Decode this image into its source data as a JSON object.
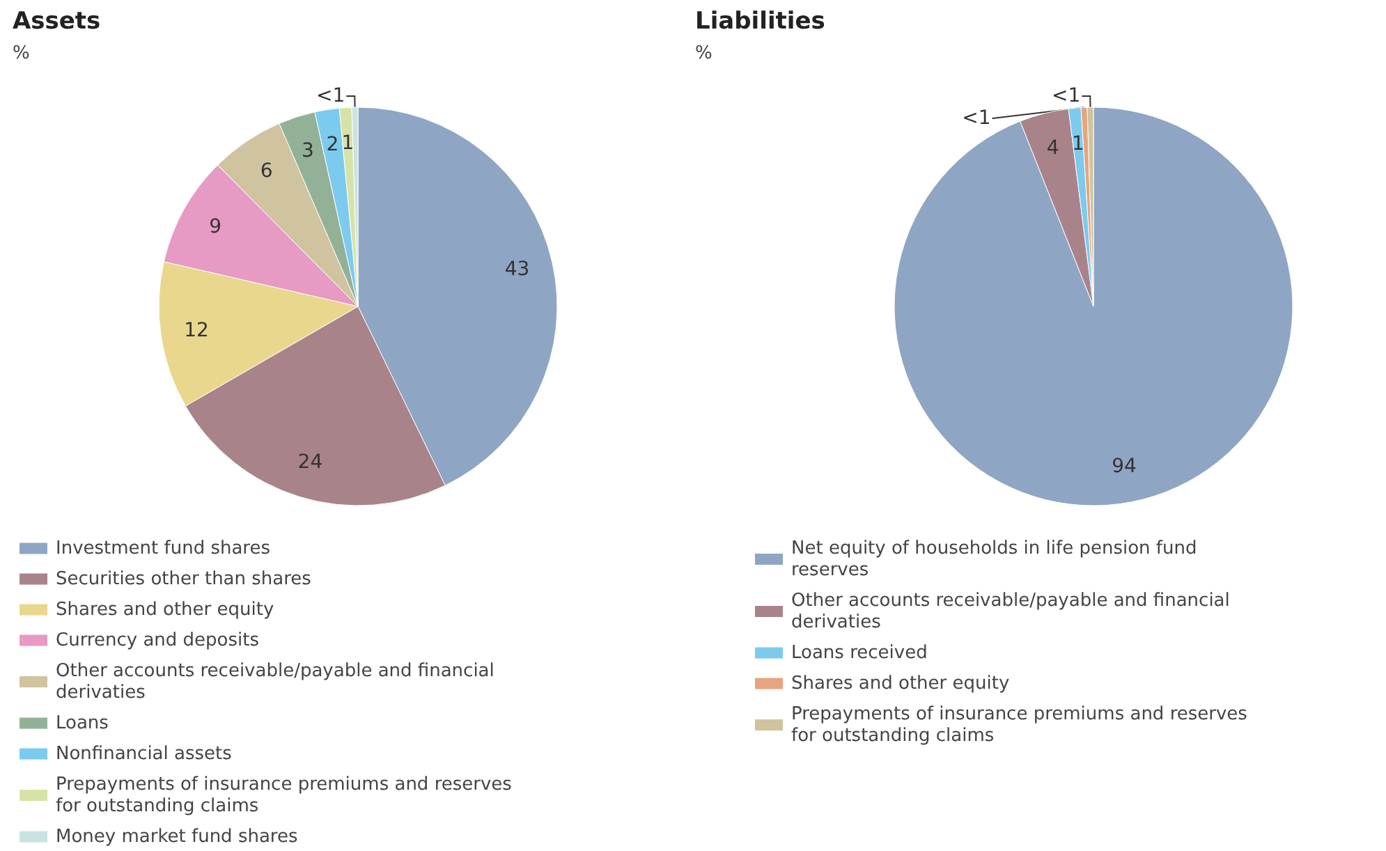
{
  "chart_data": [
    {
      "type": "pie",
      "title": "Assets",
      "subtitle": "%",
      "categories": [
        "Investment fund shares",
        "Securities other than shares",
        "Shares and other equity",
        "Currency and deposits",
        "Other accounts receivable/payable and financial derivaties",
        "Loans",
        "Nonfinancial assets",
        "Prepayments of insurance premiums and reserves for outstanding claims",
        "Money market fund shares"
      ],
      "values": [
        43,
        24,
        12,
        9,
        6,
        3,
        2,
        1,
        0.5
      ],
      "value_labels": [
        "43",
        "24",
        "12",
        "9",
        "6",
        "3",
        "2",
        "1",
        "<1"
      ],
      "colors": [
        "#8fa5c4",
        "#a8848a",
        "#e9d78e",
        "#e79ac3",
        "#d0c3a0",
        "#93b197",
        "#7ccbee",
        "#d6e3a8",
        "#c9e3e1"
      ],
      "legend": "bottom"
    },
    {
      "type": "pie",
      "title": "Liabilities",
      "subtitle": "%",
      "categories": [
        "Net equity of households in life pension fund reserves",
        "Other accounts receivable/payable and financial derivaties",
        "Loans received",
        "Shares and other equity",
        "Prepayments of insurance premiums and reserves for outstanding claims"
      ],
      "values": [
        94,
        4,
        1,
        0.5,
        0.5
      ],
      "value_labels": [
        "94",
        "4",
        "1",
        "<1",
        "<1"
      ],
      "colors": [
        "#8fa5c4",
        "#a8848a",
        "#7ccbee",
        "#e6a57f",
        "#d0c3a0"
      ],
      "legend": "bottom"
    }
  ]
}
